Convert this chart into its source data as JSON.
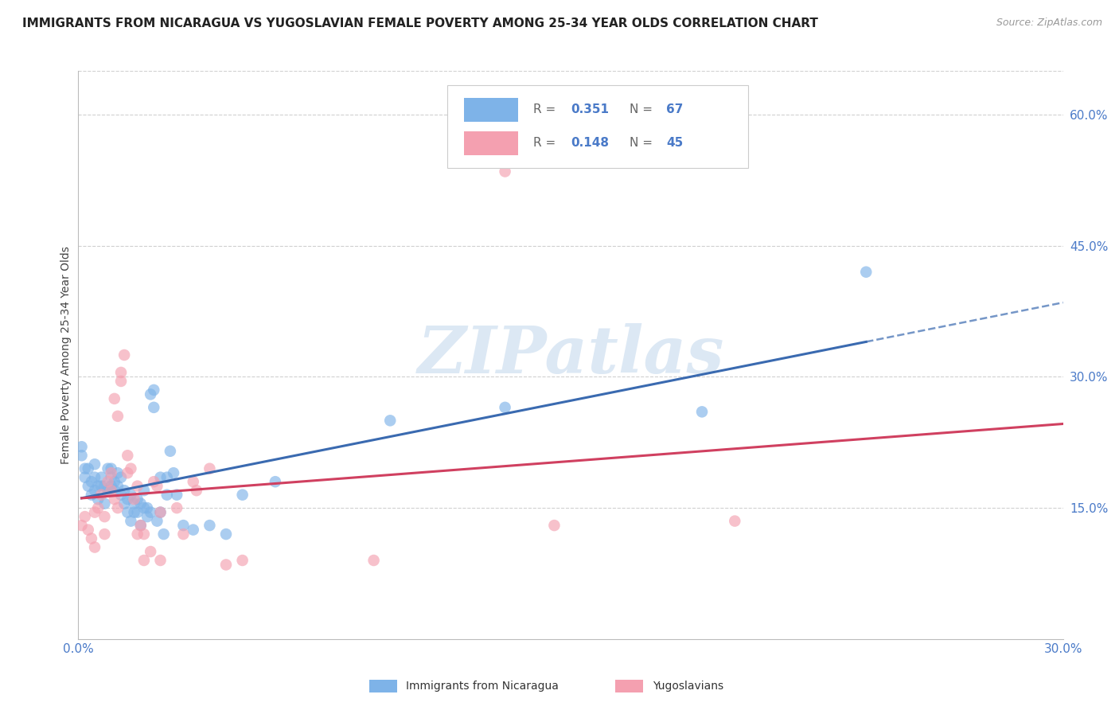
{
  "title": "IMMIGRANTS FROM NICARAGUA VS YUGOSLAVIAN FEMALE POVERTY AMONG 25-34 YEAR OLDS CORRELATION CHART",
  "source": "Source: ZipAtlas.com",
  "ylabel": "Female Poverty Among 25-34 Year Olds",
  "xlim": [
    0.0,
    0.3
  ],
  "ylim": [
    0.0,
    0.65
  ],
  "yticks": [
    0.15,
    0.3,
    0.45,
    0.6
  ],
  "ytick_labels": [
    "15.0%",
    "30.0%",
    "45.0%",
    "60.0%"
  ],
  "xticks": [
    0.0,
    0.05,
    0.1,
    0.15,
    0.2,
    0.25,
    0.3
  ],
  "xtick_labels": [
    "0.0%",
    "",
    "",
    "",
    "",
    "",
    "30.0%"
  ],
  "nicaragua_color": "#7eb3e8",
  "yugoslavia_color": "#f4a0b0",
  "nicaragua_line_color": "#3a6ab0",
  "yugoslavia_line_color": "#d04060",
  "tick_color": "#4a7ac8",
  "grid_color": "#d0d0d0",
  "background_color": "#ffffff",
  "watermark": "ZIPatlas",
  "watermark_color": "#dce8f4",
  "nicaragua_scatter": [
    [
      0.001,
      0.22
    ],
    [
      0.001,
      0.21
    ],
    [
      0.002,
      0.195
    ],
    [
      0.002,
      0.185
    ],
    [
      0.003,
      0.175
    ],
    [
      0.003,
      0.195
    ],
    [
      0.004,
      0.18
    ],
    [
      0.004,
      0.165
    ],
    [
      0.005,
      0.17
    ],
    [
      0.005,
      0.2
    ],
    [
      0.005,
      0.185
    ],
    [
      0.006,
      0.175
    ],
    [
      0.006,
      0.16
    ],
    [
      0.007,
      0.175
    ],
    [
      0.007,
      0.185
    ],
    [
      0.008,
      0.155
    ],
    [
      0.008,
      0.175
    ],
    [
      0.009,
      0.17
    ],
    [
      0.009,
      0.195
    ],
    [
      0.01,
      0.185
    ],
    [
      0.01,
      0.195
    ],
    [
      0.01,
      0.175
    ],
    [
      0.011,
      0.18
    ],
    [
      0.011,
      0.17
    ],
    [
      0.012,
      0.175
    ],
    [
      0.012,
      0.19
    ],
    [
      0.013,
      0.185
    ],
    [
      0.013,
      0.165
    ],
    [
      0.014,
      0.17
    ],
    [
      0.014,
      0.155
    ],
    [
      0.015,
      0.16
    ],
    [
      0.015,
      0.145
    ],
    [
      0.016,
      0.135
    ],
    [
      0.016,
      0.165
    ],
    [
      0.017,
      0.155
    ],
    [
      0.017,
      0.145
    ],
    [
      0.018,
      0.145
    ],
    [
      0.018,
      0.16
    ],
    [
      0.019,
      0.13
    ],
    [
      0.019,
      0.155
    ],
    [
      0.02,
      0.17
    ],
    [
      0.02,
      0.15
    ],
    [
      0.021,
      0.14
    ],
    [
      0.021,
      0.15
    ],
    [
      0.022,
      0.145
    ],
    [
      0.022,
      0.28
    ],
    [
      0.023,
      0.285
    ],
    [
      0.023,
      0.265
    ],
    [
      0.024,
      0.135
    ],
    [
      0.025,
      0.185
    ],
    [
      0.025,
      0.145
    ],
    [
      0.026,
      0.12
    ],
    [
      0.027,
      0.185
    ],
    [
      0.027,
      0.165
    ],
    [
      0.028,
      0.215
    ],
    [
      0.029,
      0.19
    ],
    [
      0.03,
      0.165
    ],
    [
      0.032,
      0.13
    ],
    [
      0.035,
      0.125
    ],
    [
      0.04,
      0.13
    ],
    [
      0.045,
      0.12
    ],
    [
      0.05,
      0.165
    ],
    [
      0.06,
      0.18
    ],
    [
      0.095,
      0.25
    ],
    [
      0.13,
      0.265
    ],
    [
      0.19,
      0.26
    ],
    [
      0.24,
      0.42
    ]
  ],
  "yugoslavia_scatter": [
    [
      0.001,
      0.13
    ],
    [
      0.002,
      0.14
    ],
    [
      0.003,
      0.125
    ],
    [
      0.004,
      0.115
    ],
    [
      0.005,
      0.105
    ],
    [
      0.005,
      0.145
    ],
    [
      0.006,
      0.15
    ],
    [
      0.007,
      0.165
    ],
    [
      0.008,
      0.12
    ],
    [
      0.008,
      0.14
    ],
    [
      0.009,
      0.18
    ],
    [
      0.01,
      0.19
    ],
    [
      0.01,
      0.17
    ],
    [
      0.011,
      0.16
    ],
    [
      0.011,
      0.275
    ],
    [
      0.012,
      0.15
    ],
    [
      0.012,
      0.255
    ],
    [
      0.013,
      0.305
    ],
    [
      0.013,
      0.295
    ],
    [
      0.014,
      0.325
    ],
    [
      0.015,
      0.19
    ],
    [
      0.015,
      0.21
    ],
    [
      0.016,
      0.195
    ],
    [
      0.017,
      0.16
    ],
    [
      0.018,
      0.12
    ],
    [
      0.018,
      0.175
    ],
    [
      0.019,
      0.13
    ],
    [
      0.02,
      0.12
    ],
    [
      0.02,
      0.09
    ],
    [
      0.022,
      0.1
    ],
    [
      0.023,
      0.18
    ],
    [
      0.024,
      0.175
    ],
    [
      0.025,
      0.145
    ],
    [
      0.025,
      0.09
    ],
    [
      0.03,
      0.15
    ],
    [
      0.032,
      0.12
    ],
    [
      0.035,
      0.18
    ],
    [
      0.036,
      0.17
    ],
    [
      0.04,
      0.195
    ],
    [
      0.045,
      0.085
    ],
    [
      0.05,
      0.09
    ],
    [
      0.09,
      0.09
    ],
    [
      0.13,
      0.535
    ],
    [
      0.145,
      0.13
    ],
    [
      0.2,
      0.135
    ]
  ],
  "title_fontsize": 11,
  "source_fontsize": 9,
  "axis_label_fontsize": 10,
  "tick_fontsize": 11
}
